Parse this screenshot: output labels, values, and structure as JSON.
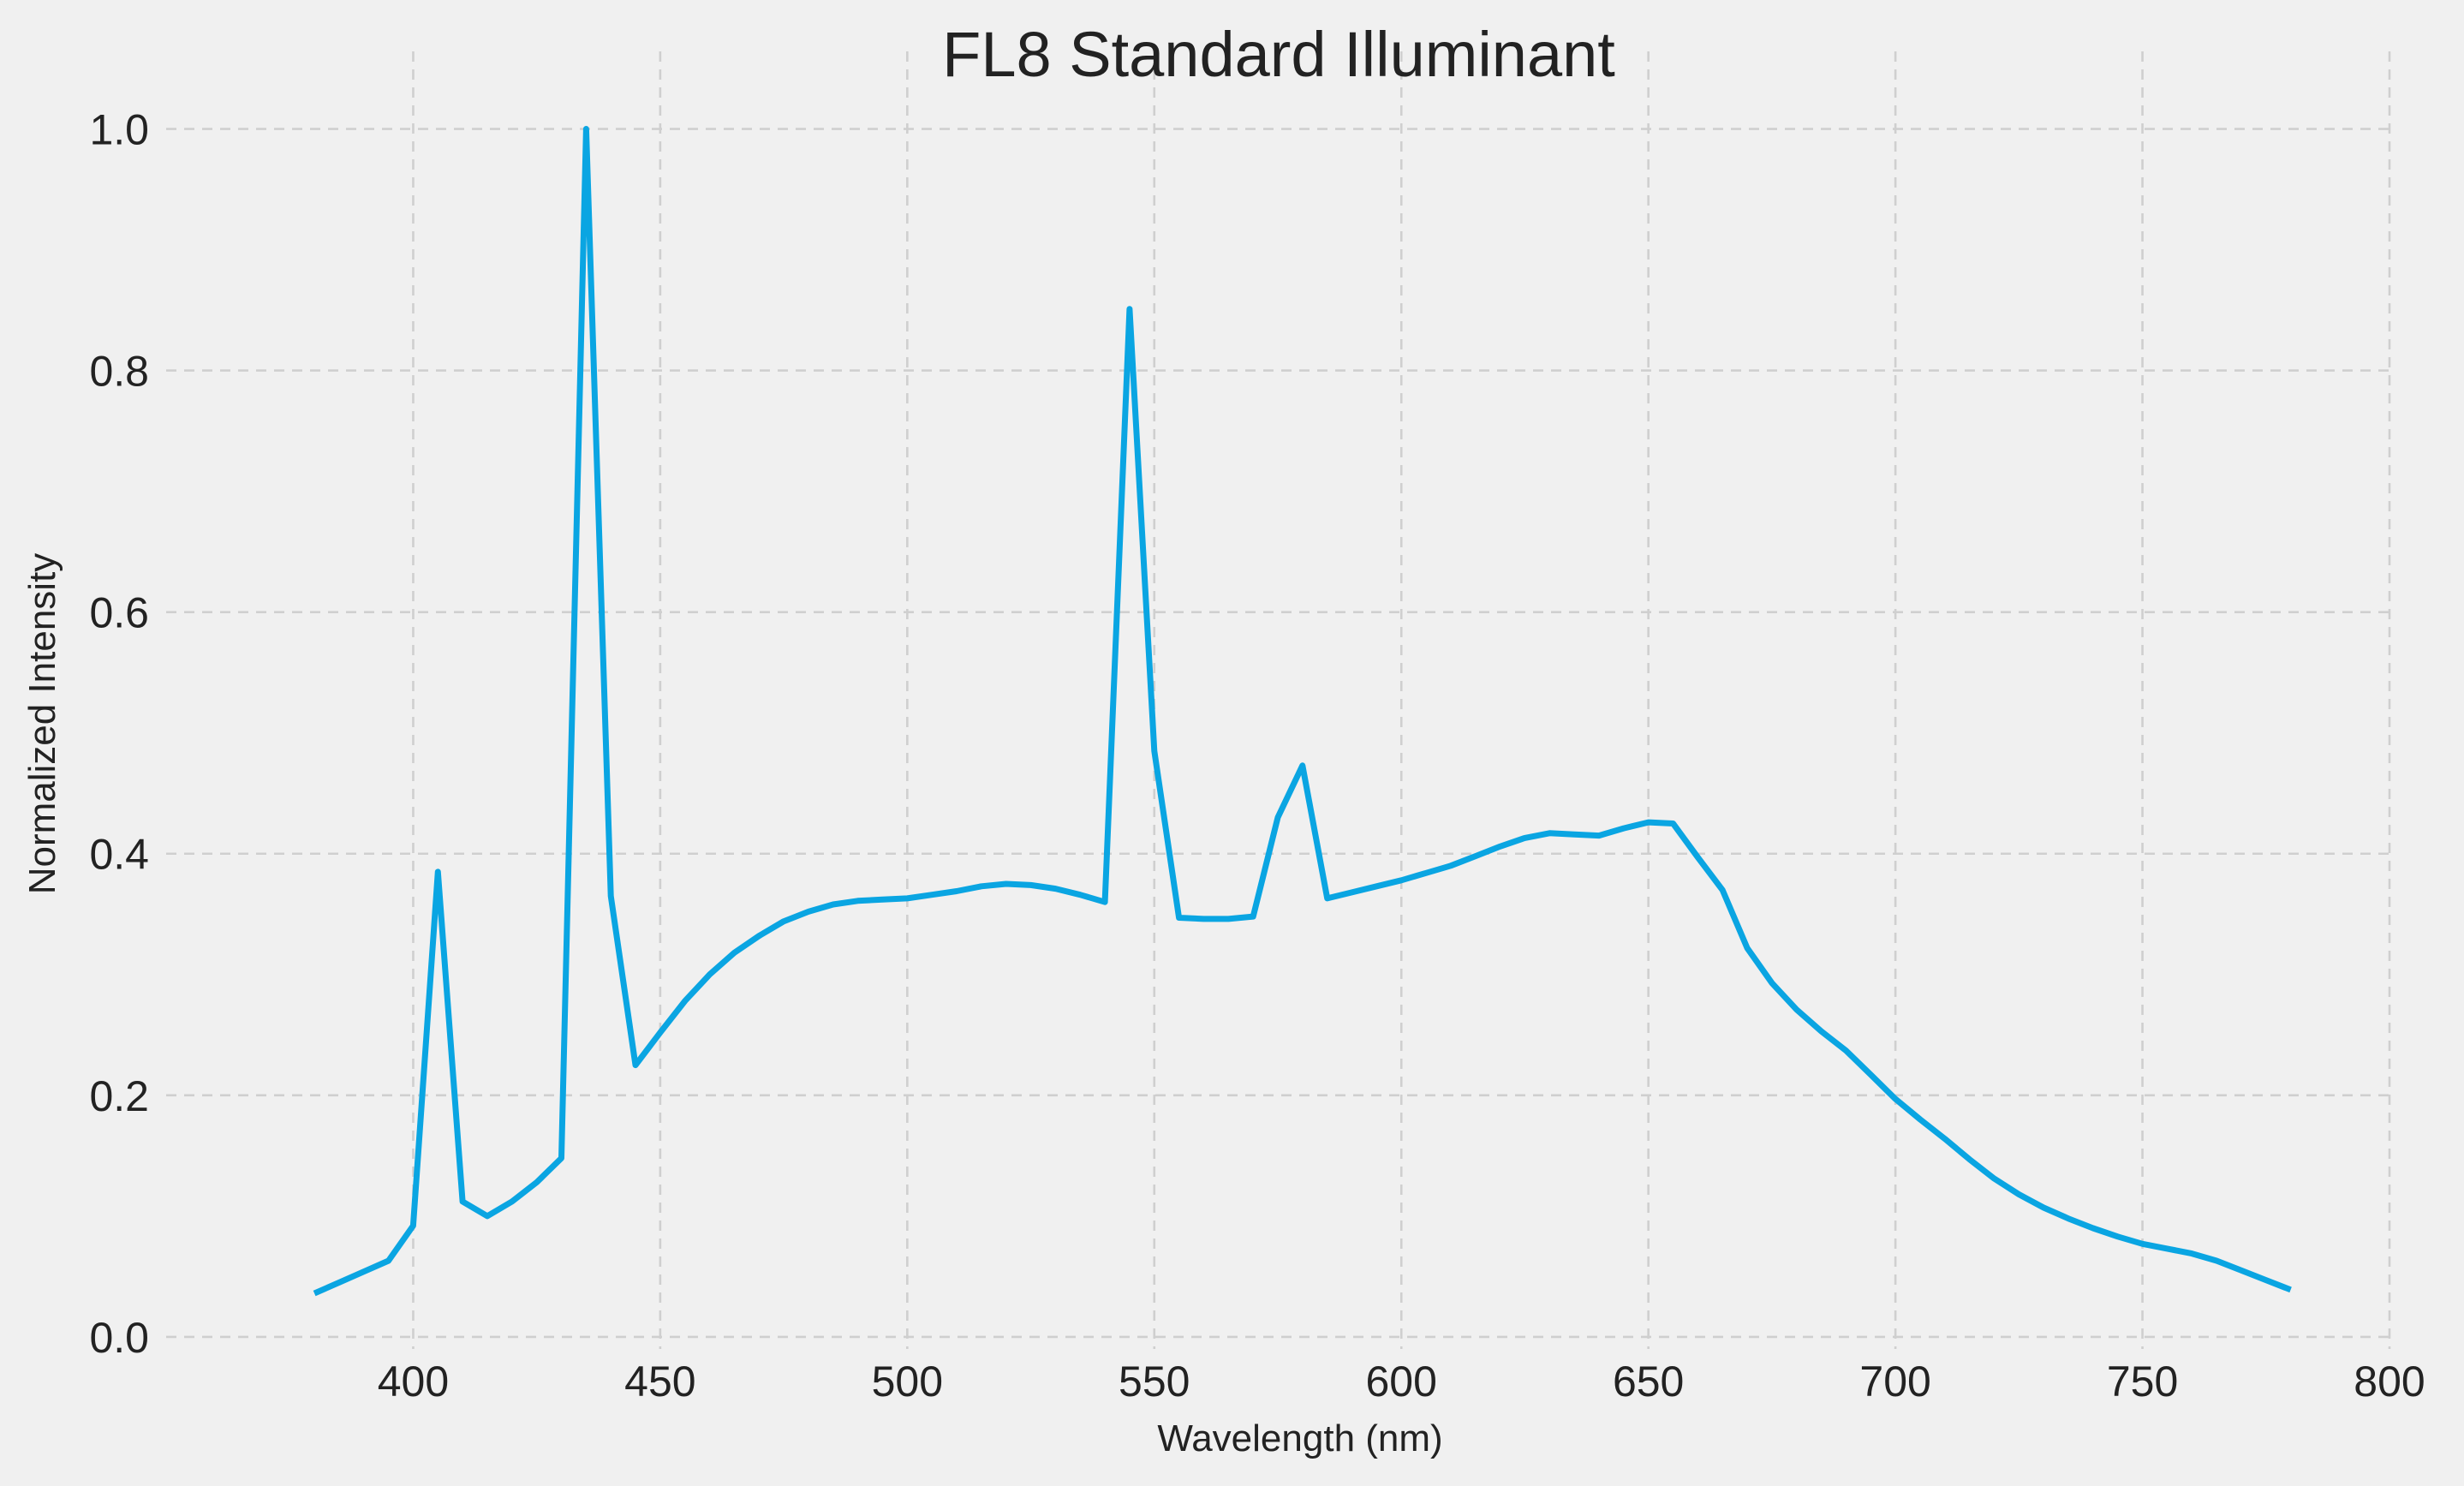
{
  "chart_data": {
    "type": "line",
    "title": "FL8 Standard Illuminant",
    "xlabel": "Wavelength (nm)",
    "ylabel": "Normalized Intensity",
    "xlim": [
      350,
      800
    ],
    "ylim": [
      -0.01,
      1.05
    ],
    "x_ticks": [
      400,
      450,
      500,
      550,
      600,
      650,
      700,
      750,
      800
    ],
    "y_ticks": [
      0.0,
      0.2,
      0.4,
      0.6,
      0.8,
      1.0
    ],
    "x_tick_labels": [
      "400",
      "450",
      "500",
      "550",
      "600",
      "650",
      "700",
      "750",
      "800"
    ],
    "y_tick_labels": [
      "0.0",
      "0.2",
      "0.4",
      "0.6",
      "0.8",
      "1.0"
    ],
    "grid": true,
    "line_color": "#0aa5e2",
    "background_color": "#f0f0f0",
    "series": [
      {
        "x": [
          380,
          385,
          390,
          395,
          400,
          405,
          410,
          415,
          420,
          425,
          430,
          435,
          440,
          445,
          450,
          455,
          460,
          465,
          470,
          475,
          480,
          485,
          490,
          495,
          500,
          505,
          510,
          515,
          520,
          525,
          530,
          535,
          540,
          545,
          550,
          555,
          560,
          565,
          570,
          575,
          580,
          585,
          590,
          595,
          600,
          605,
          610,
          615,
          620,
          625,
          630,
          635,
          640,
          645,
          650,
          655,
          660,
          665,
          670,
          675,
          680,
          685,
          690,
          695,
          700,
          705,
          710,
          715,
          720,
          725,
          730,
          735,
          740,
          745,
          750,
          755,
          760,
          765,
          770,
          775,
          780
        ],
        "y": [
          0.036,
          0.045,
          0.054,
          0.063,
          0.092,
          0.385,
          0.112,
          0.1,
          0.112,
          0.128,
          0.148,
          1.0,
          0.365,
          0.225,
          0.252,
          0.278,
          0.3,
          0.318,
          0.332,
          0.344,
          0.352,
          0.358,
          0.361,
          0.362,
          0.363,
          0.366,
          0.369,
          0.373,
          0.375,
          0.374,
          0.371,
          0.366,
          0.36,
          0.851,
          0.485,
          0.347,
          0.346,
          0.346,
          0.348,
          0.43,
          0.473,
          0.363,
          0.368,
          0.373,
          0.378,
          0.384,
          0.39,
          0.398,
          0.406,
          0.413,
          0.417,
          0.416,
          0.415,
          0.421,
          0.426,
          0.425,
          0.397,
          0.37,
          0.322,
          0.293,
          0.271,
          0.253,
          0.237,
          0.217,
          0.197,
          0.18,
          0.164,
          0.147,
          0.131,
          0.118,
          0.107,
          0.098,
          0.09,
          0.083,
          0.077,
          0.073,
          0.069,
          0.063,
          0.055,
          0.047,
          0.039
        ]
      }
    ]
  }
}
